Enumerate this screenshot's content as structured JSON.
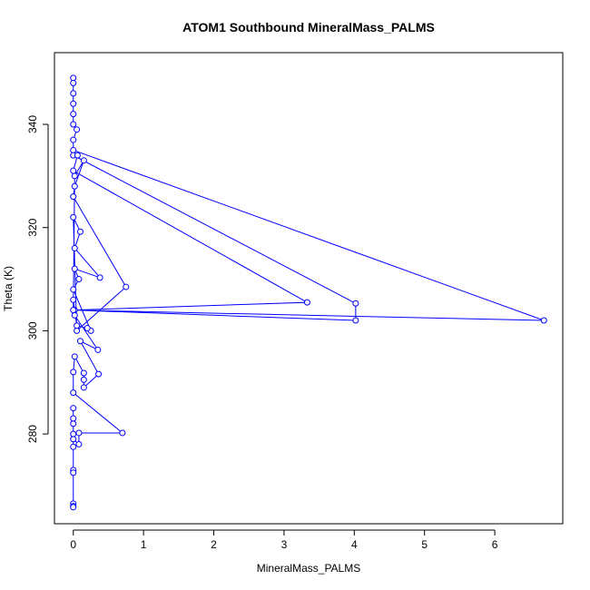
{
  "chart_data": {
    "type": "line",
    "title": "ATOM1 Southbound MineralMass_PALMS",
    "xlabel": "MineralMass_PALMS",
    "ylabel": "Theta (K)",
    "x": [
      0,
      0,
      0,
      0,
      0,
      0,
      0.05,
      0,
      0,
      6.7,
      0.02,
      4.02,
      4.02,
      0,
      0.06,
      0,
      3.33,
      0,
      0.02,
      0.15,
      0.02,
      0,
      0.75,
      0.05,
      0,
      0.1,
      0.02,
      0.38,
      0.02,
      0.08,
      0,
      0.25,
      0.2,
      0.05,
      0,
      0.02,
      0.35,
      0.1,
      0.36,
      0.15,
      0.15,
      0.15,
      0.02,
      0,
      0,
      0.7,
      0.08,
      0.08,
      0,
      0,
      0,
      0,
      0,
      0,
      0,
      0,
      0,
      0,
      0
    ],
    "values": [
      349,
      348,
      346,
      344,
      342,
      340,
      339,
      337,
      335,
      302,
      304,
      302,
      305.3,
      334,
      334,
      331,
      305.5,
      304,
      330,
      333,
      328,
      326,
      308.5,
      300,
      322,
      319.2,
      316,
      310.3,
      312,
      310,
      308,
      300,
      300.5,
      301,
      306,
      303,
      296.3,
      298,
      291.6,
      289,
      290.5,
      291.8,
      295,
      292,
      288,
      280.2,
      280.2,
      278,
      279,
      282,
      285,
      283,
      280,
      277.5,
      273,
      272.5,
      266.5,
      266,
      265.8
    ],
    "color": "blue",
    "xlim": [
      -0.268,
      6.968
    ],
    "xticks": [
      0,
      1,
      2,
      3,
      4,
      5,
      6
    ],
    "ylim": [
      262.6,
      353.9
    ],
    "yticks": [
      280,
      300,
      320,
      340
    ]
  }
}
